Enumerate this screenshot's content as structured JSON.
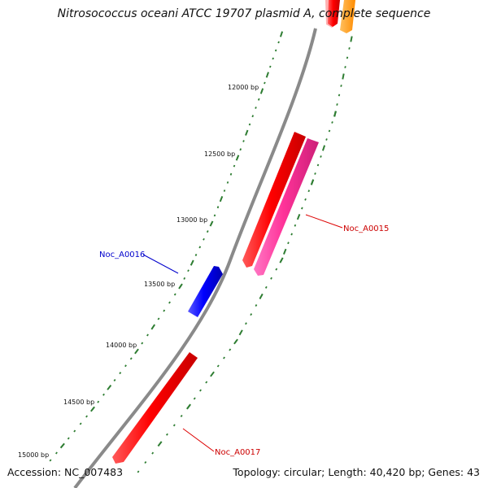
{
  "title": "Nitrosococcus oceani ATCC 19707 plasmid A, complete sequence",
  "accession_text": "Accession: NC_007483",
  "summary_text": "Topology: circular; Length: 40,420 bp; Genes: 43",
  "colors": {
    "backbone": "#808080",
    "tick": "#2e7d32",
    "gene_red": "#ff0000",
    "gene_pink": "#ff3399",
    "gene_blue": "#0000ff",
    "gene_orange": "#ff9900",
    "gene_pale": "#ffaaaa"
  },
  "bp_ticks": [
    {
      "label": "12000 bp"
    },
    {
      "label": "12500 bp"
    },
    {
      "label": "13000 bp"
    },
    {
      "label": "13500 bp"
    },
    {
      "label": "14000 bp"
    },
    {
      "label": "14500 bp"
    },
    {
      "label": "15000 bp"
    }
  ],
  "genes": [
    {
      "label": "Noc_A0015",
      "color": "#ff3399",
      "label_color": "#cc0000"
    },
    {
      "label": "Noc_A0016",
      "color": "#0000ff",
      "label_color": "#0000cc"
    },
    {
      "label": "Noc_A0017",
      "color": "#ff0000",
      "label_color": "#cc0000"
    }
  ]
}
